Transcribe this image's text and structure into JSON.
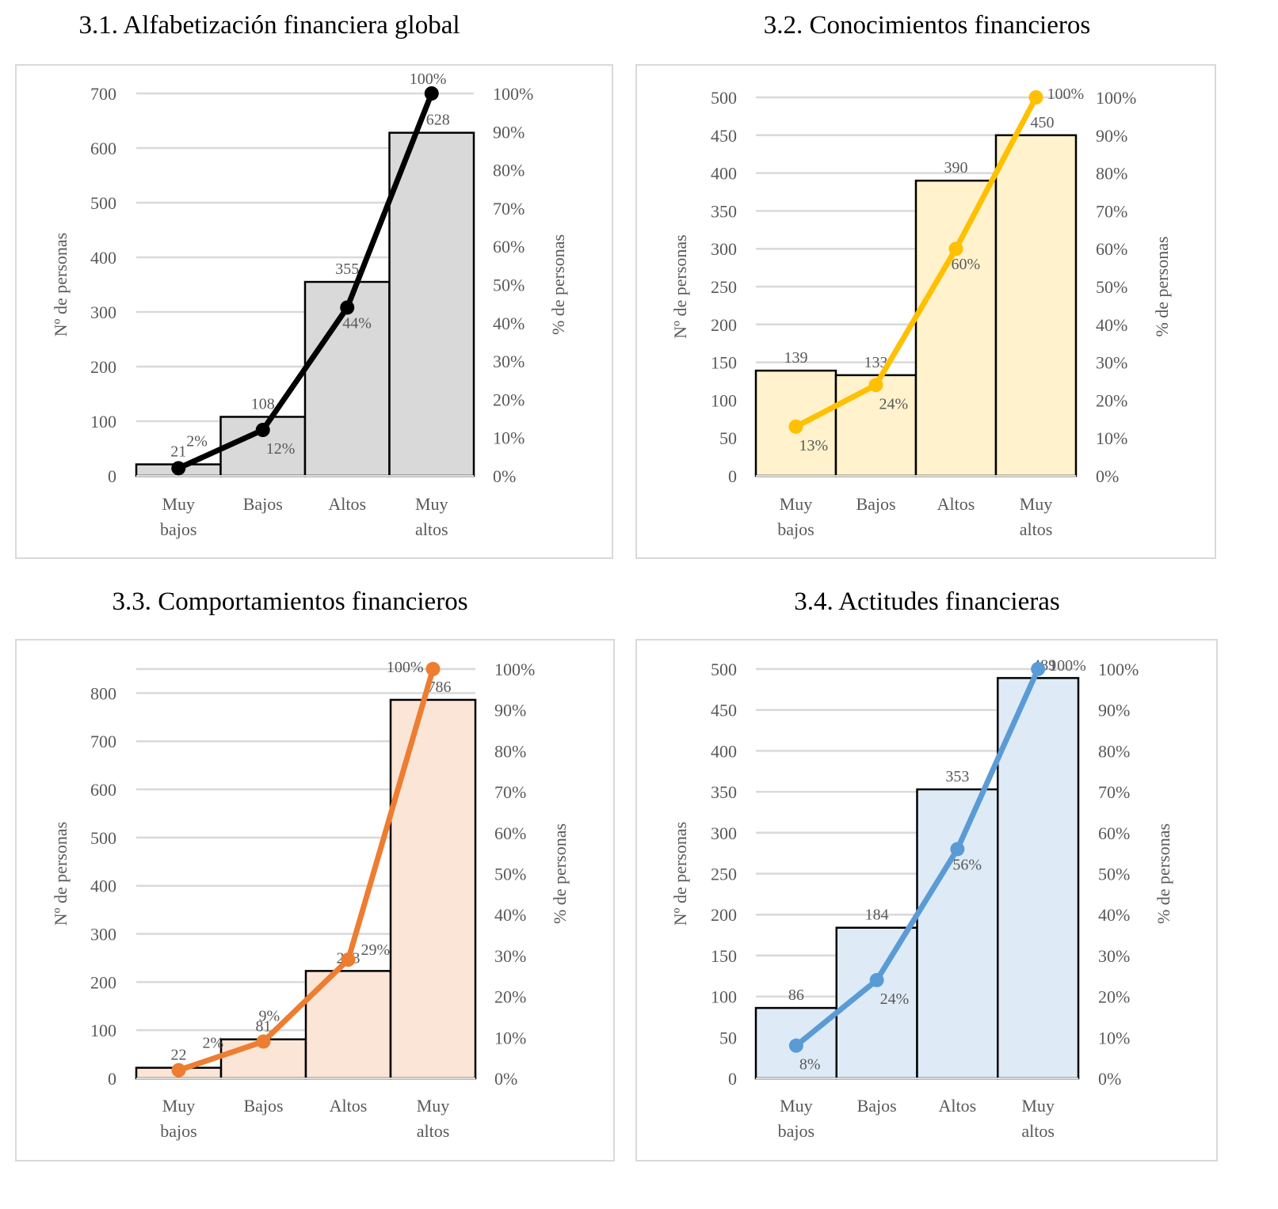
{
  "chart_data": [
    {
      "id": "3.1",
      "type": "bar",
      "title": "3.1. Alfabetización financiera global",
      "categories": [
        "Muy bajos",
        "Bajos",
        "Altos",
        "Muy altos"
      ],
      "category_lines": [
        [
          "Muy",
          "bajos"
        ],
        [
          "Bajos"
        ],
        [
          "Altos"
        ],
        [
          "Muy",
          "altos"
        ]
      ],
      "series": [
        {
          "name": "Nº de personas",
          "type": "bar",
          "axis": "left",
          "values": [
            21,
            108,
            355,
            628
          ],
          "labels": [
            "21",
            "108",
            "355",
            "628"
          ]
        },
        {
          "name": "% de personas",
          "type": "line",
          "axis": "right",
          "values": [
            2,
            12,
            44,
            100
          ],
          "labels": [
            "2%",
            "12%",
            "44%",
            "100%"
          ]
        }
      ],
      "ylabel": "Nº de personas",
      "y2label": "% de personas",
      "ylim": [
        0,
        700
      ],
      "yticks": [
        0,
        100,
        200,
        300,
        400,
        500,
        600,
        700
      ],
      "y2lim": [
        0,
        100
      ],
      "y2ticks": [
        0,
        10,
        20,
        30,
        40,
        50,
        60,
        70,
        80,
        90,
        100
      ],
      "y2tick_labels": [
        "0%",
        "10%",
        "20%",
        "30%",
        "40%",
        "50%",
        "60%",
        "70%",
        "80%",
        "90%",
        "100%"
      ],
      "colors": {
        "bar_fill": "#d9d9d9",
        "bar_stroke": "#000000",
        "line": "#000000"
      },
      "grid": true
    },
    {
      "id": "3.2",
      "type": "bar",
      "title": "3.2. Conocimientos financieros",
      "categories": [
        "Muy bajos",
        "Bajos",
        "Altos",
        "Muy altos"
      ],
      "category_lines": [
        [
          "Muy",
          "bajos"
        ],
        [
          "Bajos"
        ],
        [
          "Altos"
        ],
        [
          "Muy",
          "altos"
        ]
      ],
      "series": [
        {
          "name": "Nº de personas",
          "type": "bar",
          "axis": "left",
          "values": [
            139,
            133,
            390,
            450
          ],
          "labels": [
            "139",
            "133",
            "390",
            "450"
          ]
        },
        {
          "name": "% de personas",
          "type": "line",
          "axis": "right",
          "values": [
            13,
            24,
            60,
            100
          ],
          "labels": [
            "13%",
            "24%",
            "60%",
            "100%"
          ]
        }
      ],
      "ylabel": "Nº de personas",
      "y2label": "% de personas",
      "ylim": [
        0,
        500
      ],
      "yticks": [
        0,
        50,
        100,
        150,
        200,
        250,
        300,
        350,
        400,
        450,
        500
      ],
      "y2lim": [
        0,
        100
      ],
      "y2ticks": [
        0,
        10,
        20,
        30,
        40,
        50,
        60,
        70,
        80,
        90,
        100
      ],
      "y2tick_labels": [
        "0%",
        "10%",
        "20%",
        "30%",
        "40%",
        "50%",
        "60%",
        "70%",
        "80%",
        "90%",
        "100%"
      ],
      "colors": {
        "bar_fill": "#fff2cc",
        "bar_stroke": "#000000",
        "line": "#ffc000"
      },
      "grid": true
    },
    {
      "id": "3.3",
      "type": "bar",
      "title": "3.3. Comportamientos financieros",
      "categories": [
        "Muy bajos",
        "Bajos",
        "Altos",
        "Muy altos"
      ],
      "category_lines": [
        [
          "Muy",
          "bajos"
        ],
        [
          "Bajos"
        ],
        [
          "Altos"
        ],
        [
          "Muy",
          "altos"
        ]
      ],
      "series": [
        {
          "name": "Nº de personas",
          "type": "bar",
          "axis": "left",
          "values": [
            22,
            81,
            223,
            786
          ],
          "labels": [
            "22",
            "81",
            "223",
            "786"
          ]
        },
        {
          "name": "% de personas",
          "type": "line",
          "axis": "right",
          "values": [
            2,
            9,
            29,
            100
          ],
          "labels": [
            "2%",
            "9%",
            "29%",
            "100%"
          ]
        }
      ],
      "ylabel": "Nº de personas",
      "y2label": "% de personas",
      "ylim": [
        0,
        850
      ],
      "yticks": [
        0,
        100,
        200,
        300,
        400,
        500,
        600,
        700,
        800
      ],
      "y2lim": [
        0,
        100
      ],
      "y2ticks": [
        0,
        10,
        20,
        30,
        40,
        50,
        60,
        70,
        80,
        90,
        100
      ],
      "y2tick_labels": [
        "0%",
        "10%",
        "20%",
        "30%",
        "40%",
        "50%",
        "60%",
        "70%",
        "80%",
        "90%",
        "100%"
      ],
      "colors": {
        "bar_fill": "#fbe5d6",
        "bar_stroke": "#000000",
        "line": "#ed7d31"
      },
      "grid": true
    },
    {
      "id": "3.4",
      "type": "bar",
      "title": "3.4. Actitudes financieras",
      "categories": [
        "Muy bajos",
        "Bajos",
        "Altos",
        "Muy altos"
      ],
      "category_lines": [
        [
          "Muy",
          "bajos"
        ],
        [
          "Bajos"
        ],
        [
          "Altos"
        ],
        [
          "Muy",
          "altos"
        ]
      ],
      "series": [
        {
          "name": "Nº de personas",
          "type": "bar",
          "axis": "left",
          "values": [
            86,
            184,
            353,
            489
          ],
          "labels": [
            "86",
            "184",
            "353",
            "489"
          ]
        },
        {
          "name": "% de personas",
          "type": "line",
          "axis": "right",
          "values": [
            8,
            24,
            56,
            100
          ],
          "labels": [
            "8%",
            "24%",
            "56%",
            "100%"
          ]
        }
      ],
      "ylabel": "Nº de personas",
      "y2label": "% de personas",
      "ylim": [
        0,
        500
      ],
      "yticks": [
        0,
        50,
        100,
        150,
        200,
        250,
        300,
        350,
        400,
        450,
        500
      ],
      "y2lim": [
        0,
        100
      ],
      "y2ticks": [
        0,
        10,
        20,
        30,
        40,
        50,
        60,
        70,
        80,
        90,
        100
      ],
      "y2tick_labels": [
        "0%",
        "10%",
        "20%",
        "30%",
        "40%",
        "50%",
        "60%",
        "70%",
        "80%",
        "90%",
        "100%"
      ],
      "colors": {
        "bar_fill": "#deebf7",
        "bar_stroke": "#000000",
        "line": "#5b9bd5"
      },
      "grid": true
    }
  ]
}
